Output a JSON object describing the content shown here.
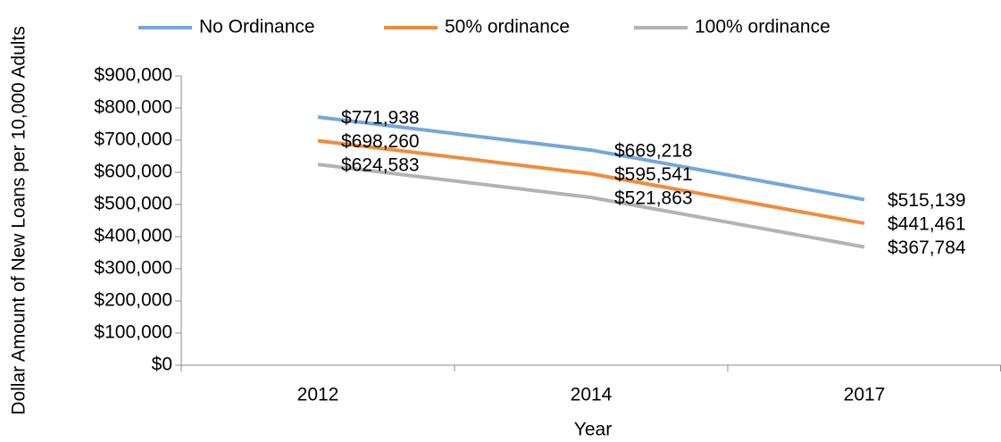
{
  "chart_data": {
    "type": "line",
    "xlabel": "Year",
    "ylabel": "Dollar Amount of New Loans per 10,000 Adults",
    "categories": [
      "2012",
      "2014",
      "2017"
    ],
    "series": [
      {
        "name": "No Ordinance",
        "color": "#73a8d9",
        "values": [
          771938,
          669218,
          515139
        ],
        "value_labels": [
          "$771,938",
          "$669,218",
          "$515,139"
        ]
      },
      {
        "name": "50% ordinance",
        "color": "#ef8c3b",
        "values": [
          698260,
          595541,
          441461
        ],
        "value_labels": [
          "$698,260",
          "$595,541",
          "$441,461"
        ]
      },
      {
        "name": "100% ordinance",
        "color": "#b3b3b3",
        "values": [
          624583,
          521863,
          367784
        ],
        "value_labels": [
          "$624,583",
          "$521,863",
          "$367,784"
        ]
      }
    ],
    "ylim": [
      0,
      900000
    ],
    "yticks": [
      {
        "value": 0,
        "label": "$0"
      },
      {
        "value": 100000,
        "label": "$100,000"
      },
      {
        "value": 200000,
        "label": "$200,000"
      },
      {
        "value": 300000,
        "label": "$300,000"
      },
      {
        "value": 400000,
        "label": "$400,000"
      },
      {
        "value": 500000,
        "label": "$500,000"
      },
      {
        "value": 600000,
        "label": "$600,000"
      },
      {
        "value": 700000,
        "label": "$700,000"
      },
      {
        "value": 800000,
        "label": "$800,000"
      },
      {
        "value": 900000,
        "label": "$900,000"
      }
    ],
    "legend": "top"
  }
}
